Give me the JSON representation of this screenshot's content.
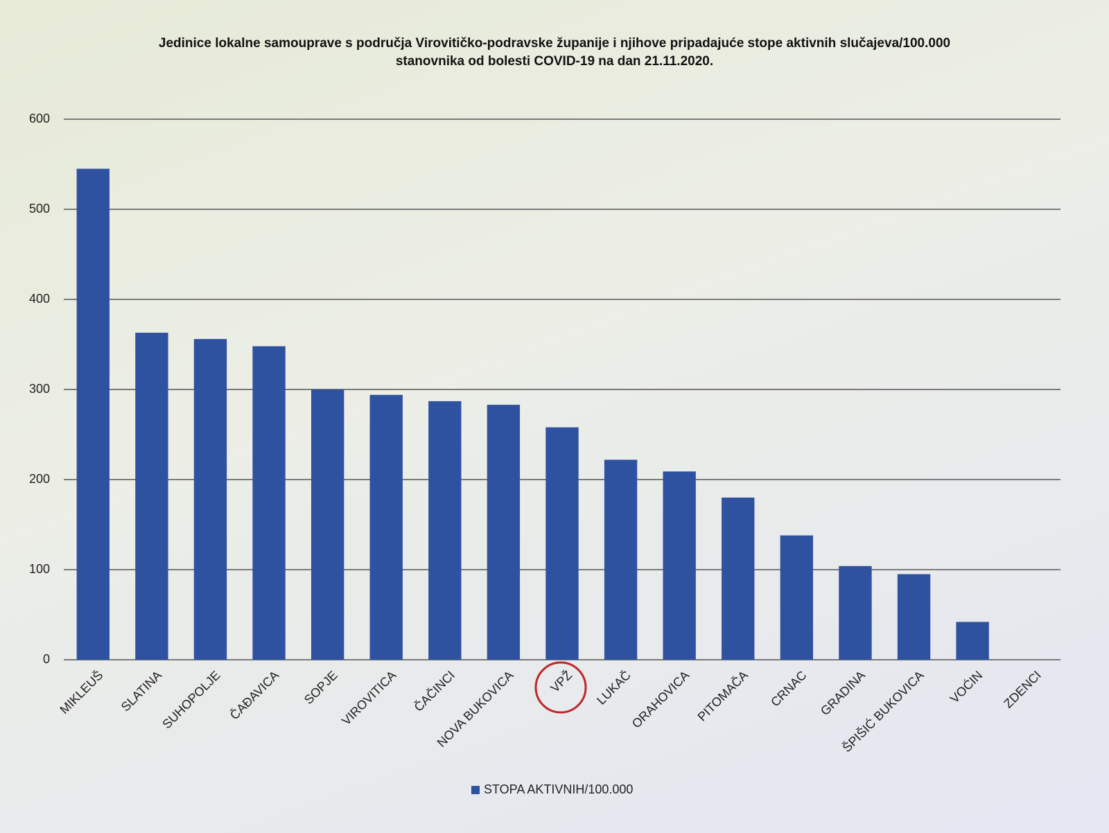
{
  "chart_data": {
    "type": "bar",
    "title": "Jedinice lokalne samouprave s područja Virovitičko-podravske županije i njihove pripadajuće stope aktivnih slučajeva/100.000 stanovnika od bolesti COVID-19 na dan 21.11.2020.",
    "categories": [
      "MIKLEUŠ",
      "SLATINA",
      "SUHOPOLJE",
      "ČAĐAVICA",
      "SOPJE",
      "VIROVITICA",
      "ČAČINCI",
      "NOVA BUKOVICA",
      "VPŽ",
      "LUKAČ",
      "ORAHOVICA",
      "PITOMAČA",
      "CRNAC",
      "GRADINA",
      "ŠPIŠIĆ BUKOVICA",
      "VOĆIN",
      "ZDENCI"
    ],
    "series": [
      {
        "name": "STOPA AKTIVNIH/100.000",
        "color": "#2f52a0",
        "values": [
          545,
          363,
          356,
          348,
          300,
          294,
          287,
          283,
          258,
          222,
          209,
          180,
          138,
          104,
          95,
          42,
          0
        ]
      }
    ],
    "ylim": [
      0,
      600
    ],
    "yticks": [
      0,
      100,
      200,
      300,
      400,
      500,
      600
    ],
    "grid": true,
    "legend": "bottom"
  }
}
